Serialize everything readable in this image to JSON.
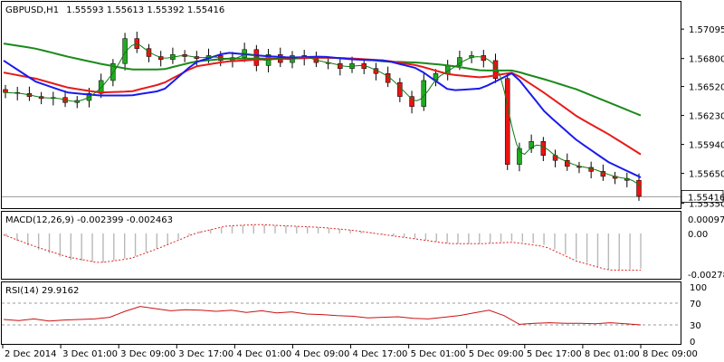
{
  "header": {
    "symbol": "GBPUSD,H1",
    "ohlc": "1.55593 1.55613 1.55392 1.55416"
  },
  "colors": {
    "bull": "#22aa22",
    "bear": "#ee1111",
    "ma_fast": "#1a1aee",
    "ma_mid": "#e81a1a",
    "ma_slow": "#1a8a1a",
    "ma_thin": "#107a10",
    "macd_hist": "#b8b8b8",
    "macd_signal": "#e02020",
    "rsi_line": "#cc1111",
    "level_line": "#999999",
    "price_tag_bg": "#ffffff"
  },
  "chart_data": [
    {
      "type": "candlestick",
      "panel": "price",
      "ylim": [
        1.5532,
        1.5735
      ],
      "yticks": [
        "1.57095",
        "1.56800",
        "1.56520",
        "1.56230",
        "1.55940",
        "1.55650",
        "1.55350"
      ],
      "current_price_label": "1.55416",
      "current_price": 1.55416,
      "x_labels": [
        "2 Dec 2014",
        "3 Dec 01:00",
        "3 Dec 09:00",
        "3 Dec 17:00",
        "4 Dec 01:00",
        "4 Dec 09:00",
        "4 Dec 17:00",
        "5 Dec 01:00",
        "5 Dec 09:00",
        "5 Dec 17:00",
        "8 Dec 01:00",
        "8 Dec 09:00"
      ],
      "close_path": [
        1.5646,
        1.5645,
        1.5642,
        1.564,
        1.5641,
        1.5636,
        1.5638,
        1.5645,
        1.5658,
        1.5675,
        1.57,
        1.569,
        1.5682,
        1.5679,
        1.5684,
        1.5682,
        1.568,
        1.5683,
        1.5678,
        1.5681,
        1.5689,
        1.5673,
        1.5684,
        1.5676,
        1.5683,
        1.568,
        1.5676,
        1.5675,
        1.567,
        1.5675,
        1.567,
        1.5665,
        1.5656,
        1.5642,
        1.5632,
        1.5658,
        1.5665,
        1.5673,
        1.5681,
        1.5683,
        1.5678,
        1.566,
        1.5574,
        1.559,
        1.5597,
        1.5583,
        1.5578,
        1.5572,
        1.5571,
        1.5567,
        1.5562,
        1.556,
        1.5558,
        1.5542
      ],
      "ma_fast": [
        1.5678,
        1.5657,
        1.5646,
        1.5643,
        1.5643,
        1.5648,
        1.5676,
        1.5686,
        1.5683,
        1.5681,
        1.5682,
        1.5679,
        1.5678,
        1.567,
        1.5648,
        1.565,
        1.5666,
        1.5626,
        1.5598,
        1.5576,
        1.5561
      ],
      "ma_mid": [
        1.5666,
        1.566,
        1.5651,
        1.5646,
        1.5647,
        1.5655,
        1.5672,
        1.5677,
        1.5679,
        1.568,
        1.5681,
        1.568,
        1.5678,
        1.5673,
        1.5664,
        1.5661,
        1.5666,
        1.5645,
        1.5622,
        1.5604,
        1.5584
      ],
      "ma_slow": [
        1.5695,
        1.569,
        1.5682,
        1.5675,
        1.5669,
        1.5669,
        1.5677,
        1.568,
        1.568,
        1.568,
        1.5681,
        1.568,
        1.5677,
        1.5676,
        1.5673,
        1.5668,
        1.5668,
        1.5659,
        1.5649,
        1.5636,
        1.5623
      ]
    },
    {
      "type": "histogram",
      "panel": "macd",
      "label": "MACD(12,26,9) -0.002399 -0.002463",
      "ylim": [
        -0.0029,
        0.0011
      ],
      "yticks": [
        "0.00097",
        "0.00",
        "-0.002783"
      ],
      "hist_path": [
        -0.0002,
        -0.0011,
        -0.0018,
        -0.002,
        -0.0016,
        -0.0008,
        0.0001,
        0.0005,
        0.0006,
        0.0005,
        0.0004,
        0.0002,
        -0.0001,
        -0.0004,
        -0.0007,
        -0.0007,
        -0.0005,
        -0.0008,
        -0.0018,
        -0.0025,
        -0.0024
      ],
      "signal_path": [
        -0.0001,
        -0.0009,
        -0.0016,
        -0.002,
        -0.0017,
        -0.0009,
        0.0,
        0.0005,
        0.0006,
        0.0005,
        0.0004,
        0.0002,
        -0.0001,
        -0.0004,
        -0.0007,
        -0.0007,
        -0.0006,
        -0.0009,
        -0.0019,
        -0.0025,
        -0.0025
      ]
    },
    {
      "type": "line",
      "panel": "rsi",
      "label": "RSI(14) 29.9162",
      "ylim": [
        0,
        100
      ],
      "yticks": [
        "100",
        "70",
        "30",
        "0"
      ],
      "levels": [
        70,
        30
      ],
      "values": [
        40,
        38,
        41,
        37,
        39,
        40,
        41,
        44,
        55,
        64,
        60,
        56,
        58,
        57,
        55,
        57,
        53,
        56,
        52,
        54,
        50,
        49,
        47,
        46,
        43,
        44,
        45,
        42,
        41,
        44,
        47,
        52,
        57,
        47,
        31,
        33,
        34,
        33,
        33,
        32,
        34,
        32,
        30
      ]
    }
  ]
}
